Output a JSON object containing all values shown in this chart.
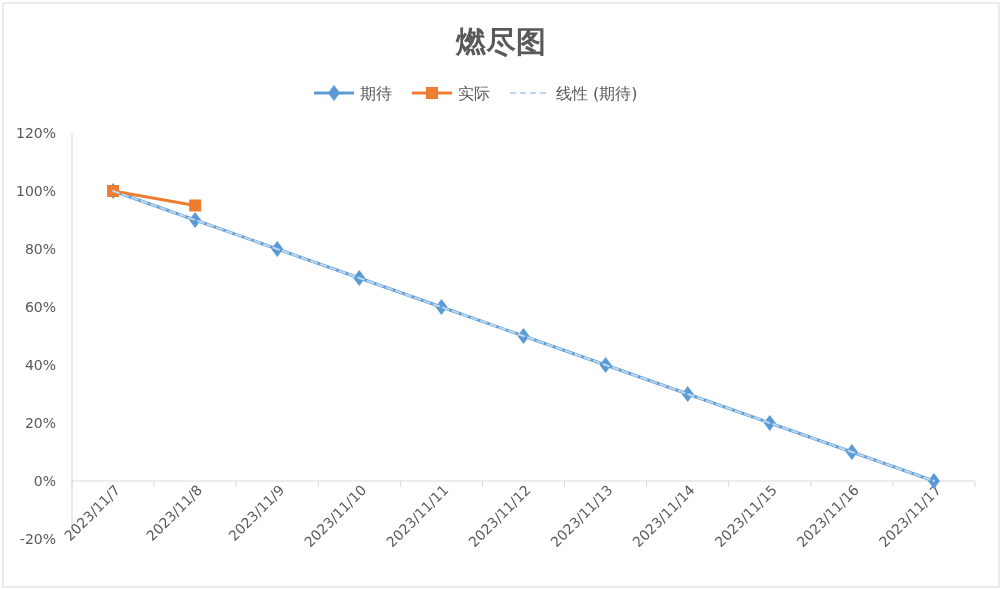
{
  "chart_data": {
    "type": "line",
    "title": "燃尽图",
    "legend": "top",
    "categories": [
      "2023/11/7",
      "2023/11/8",
      "2023/11/9",
      "2023/11/10",
      "2023/11/11",
      "2023/11/12",
      "2023/11/13",
      "2023/11/14",
      "2023/11/15",
      "2023/11/16",
      "2023/11/17"
    ],
    "ylim": [
      -20,
      120
    ],
    "yticks": [
      {
        "value": -20,
        "label": "-20%"
      },
      {
        "value": 0,
        "label": "0%"
      },
      {
        "value": 20,
        "label": "20%"
      },
      {
        "value": 40,
        "label": "40%"
      },
      {
        "value": 60,
        "label": "60%"
      },
      {
        "value": 80,
        "label": "80%"
      },
      {
        "value": 100,
        "label": "100%"
      },
      {
        "value": 120,
        "label": "120%"
      }
    ],
    "series": [
      {
        "name": "期待",
        "color": "#5b9bd5",
        "marker": "diamond",
        "line_style": "solid",
        "values": [
          100,
          90,
          80,
          70,
          60,
          50,
          40,
          30,
          20,
          10,
          0
        ]
      },
      {
        "name": "实际",
        "color": "#ed7d31",
        "marker": "square",
        "line_style": "solid",
        "values": [
          100,
          95,
          null,
          null,
          null,
          null,
          null,
          null,
          null,
          null,
          null
        ]
      },
      {
        "name": "线性 (期待)",
        "color": "#bdd7ee",
        "marker": "none",
        "line_style": "dashed",
        "values": [
          100,
          90,
          80,
          70,
          60,
          50,
          40,
          30,
          20,
          10,
          0
        ]
      }
    ]
  }
}
